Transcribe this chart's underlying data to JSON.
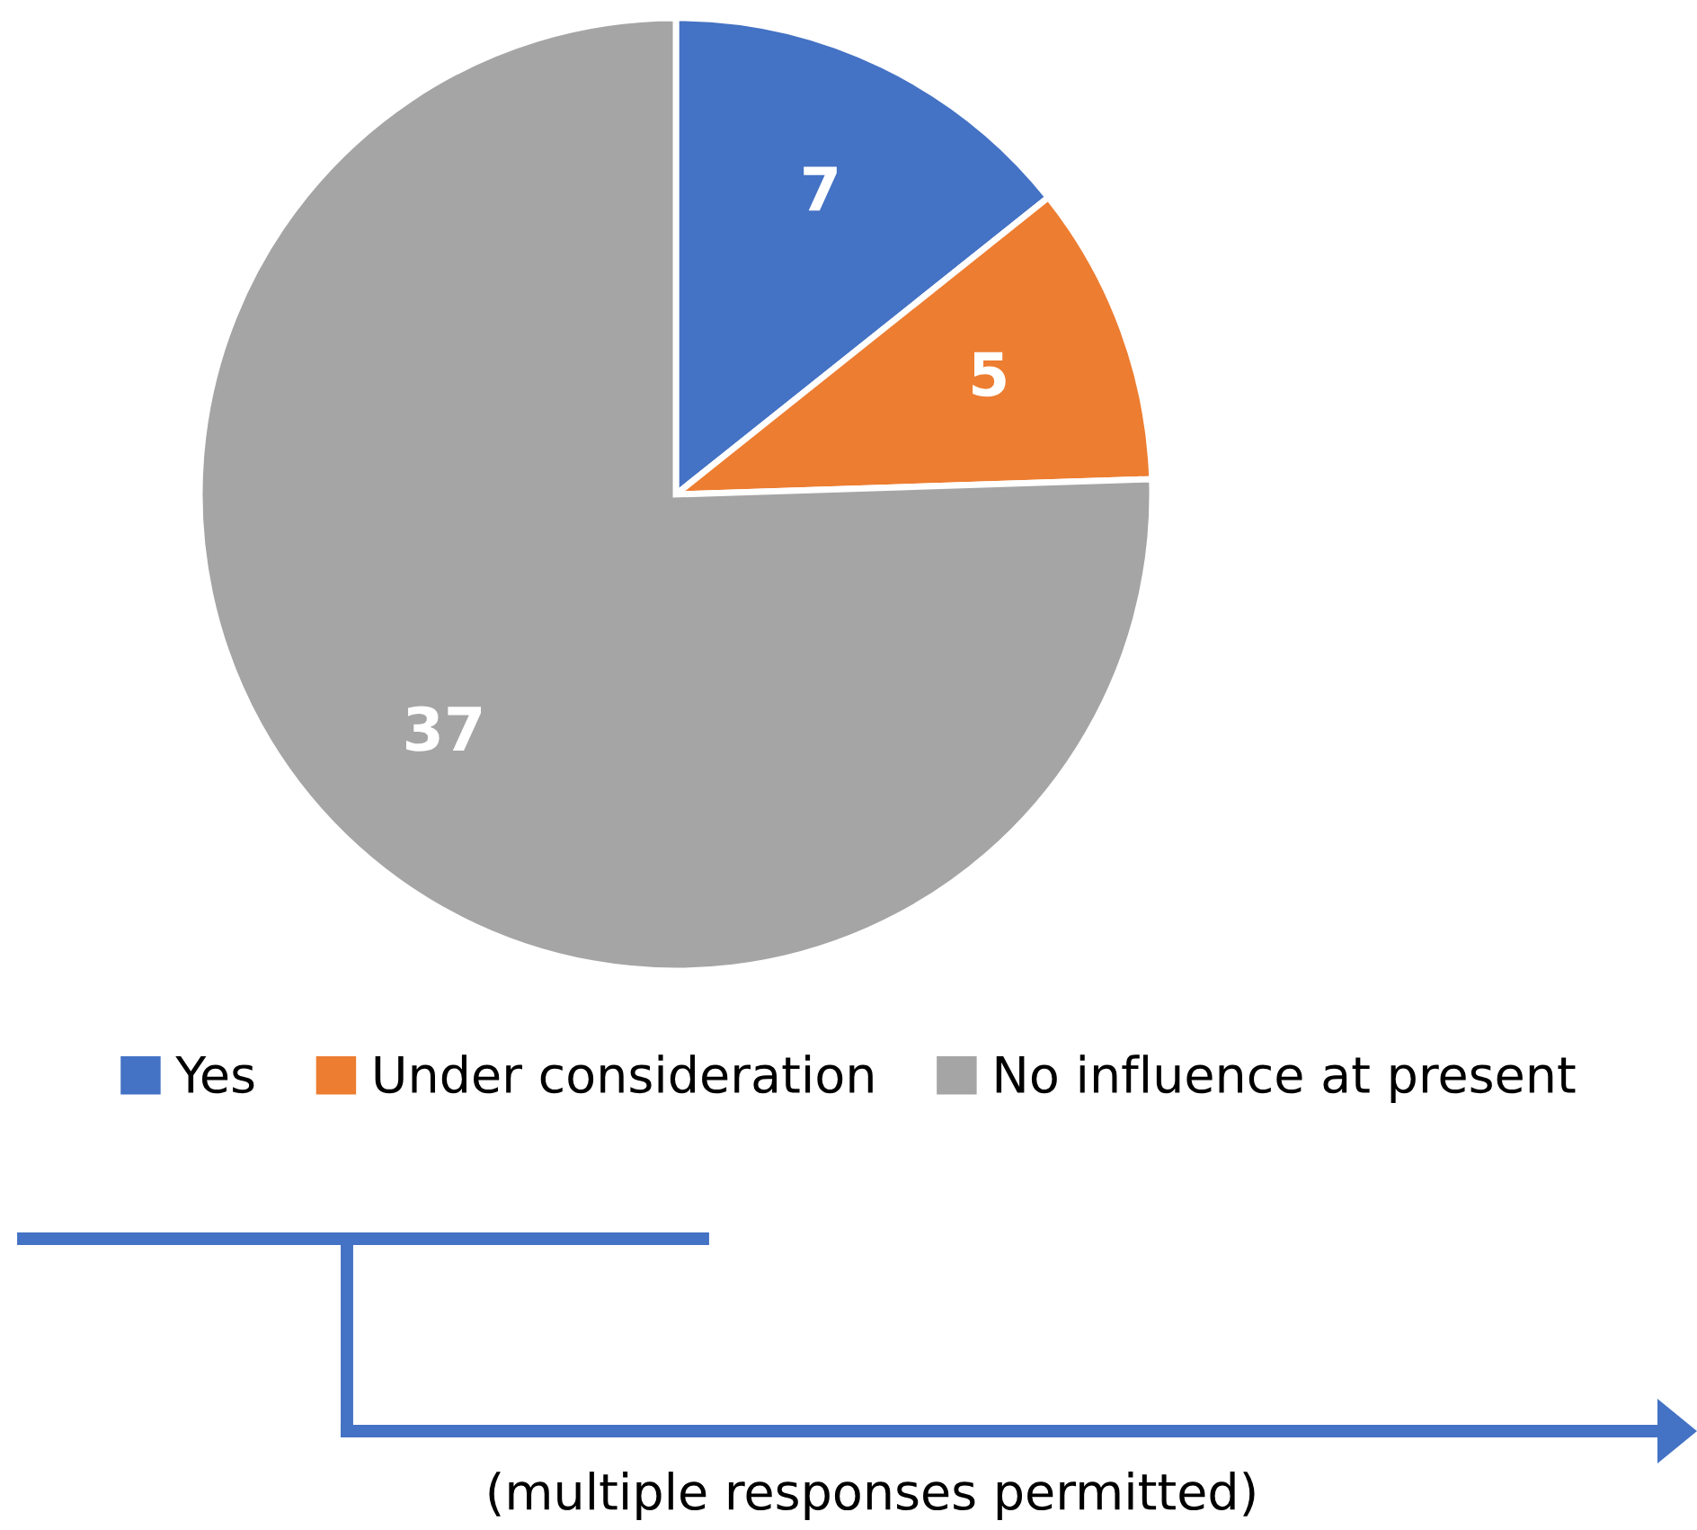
{
  "chart_data": {
    "type": "pie",
    "categories": [
      "Yes",
      "Under consideration",
      "No influence at present"
    ],
    "values": [
      7,
      5,
      37
    ],
    "colors": [
      "#4472c4",
      "#ed7d31",
      "#a5a5a5"
    ],
    "data_labels": true,
    "legend": "bottom",
    "annotations": [
      "(multiple responses permitted)"
    ]
  }
}
